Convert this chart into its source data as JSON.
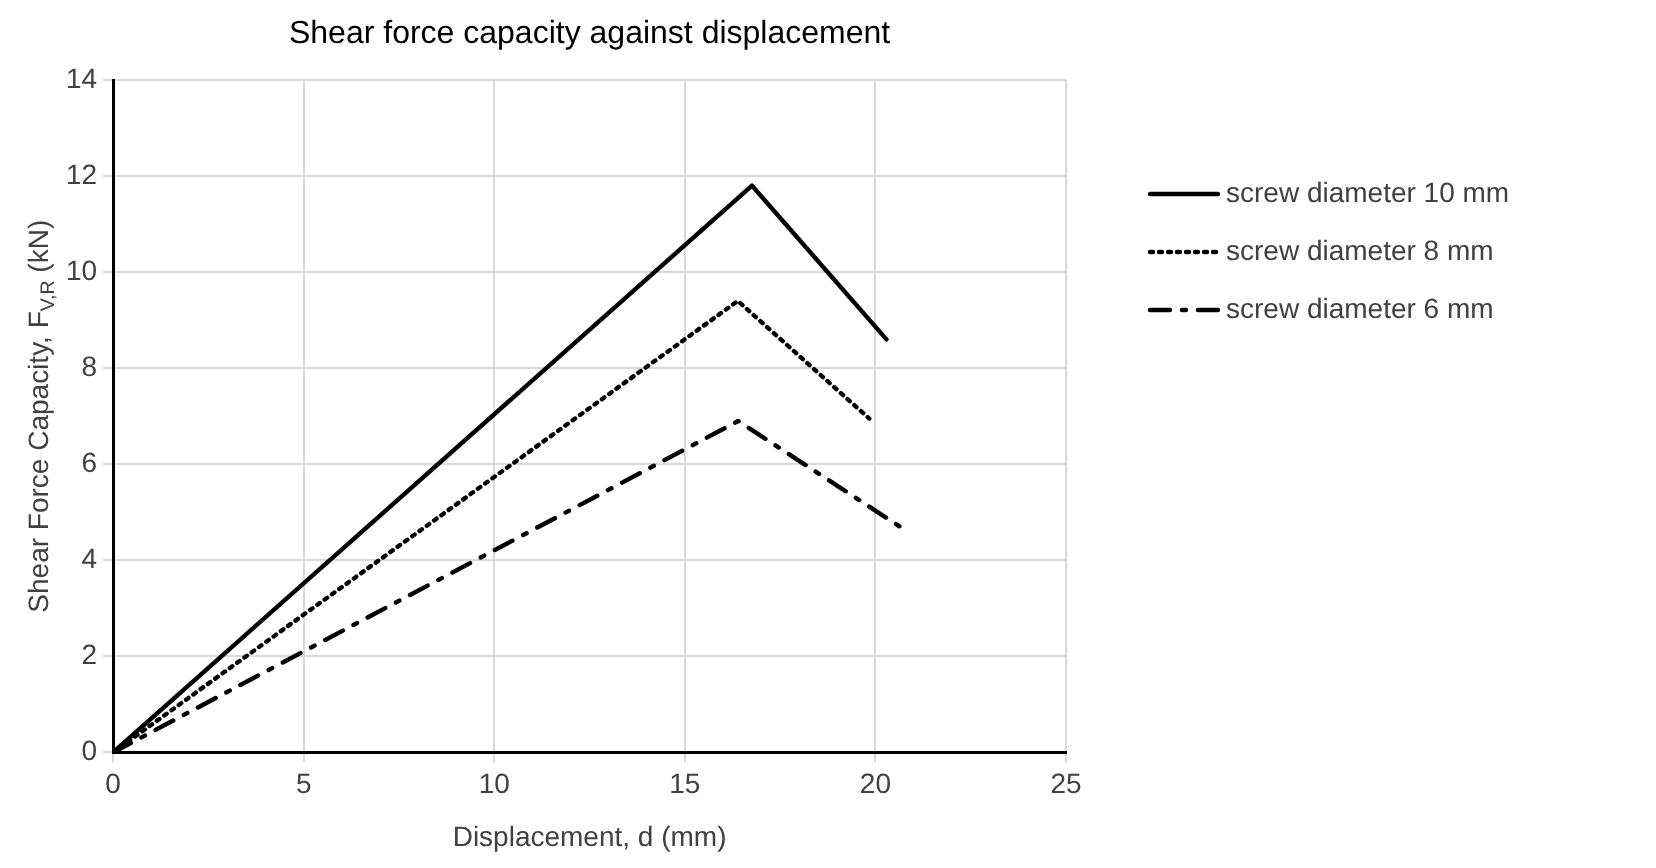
{
  "chart_data": {
    "type": "line",
    "title": "Shear force capacity against displacement",
    "xlabel": "Displacement, d (mm)",
    "ylabel": "Shear Force Capacity, F$_{V,R}$ (kN)",
    "xlim": [
      0,
      25
    ],
    "xticks": [
      0,
      5,
      10,
      15,
      20,
      25
    ],
    "ylim": [
      0,
      14
    ],
    "yticks": [
      0,
      2,
      4,
      6,
      8,
      10,
      12,
      14
    ],
    "grid": true,
    "legend": "right",
    "marker": "none",
    "series": [
      {
        "name": "screw diameter 10 mm",
        "color": "#000000",
        "line_style": "solid",
        "x": [
          0,
          16.76,
          20.29
        ],
        "values": [
          0,
          11.8,
          8.6
        ]
      },
      {
        "name": "screw diameter 8 mm",
        "color": "#000000",
        "line_style": "dotted",
        "x": [
          0,
          16.39,
          19.84
        ],
        "values": [
          0,
          9.4,
          6.95
        ]
      },
      {
        "name": "screw diameter 6 mm",
        "color": "#000000",
        "line_style": "dashdot",
        "x": [
          0,
          16.4,
          20.74
        ],
        "values": [
          0,
          6.9,
          4.65
        ]
      }
    ]
  }
}
